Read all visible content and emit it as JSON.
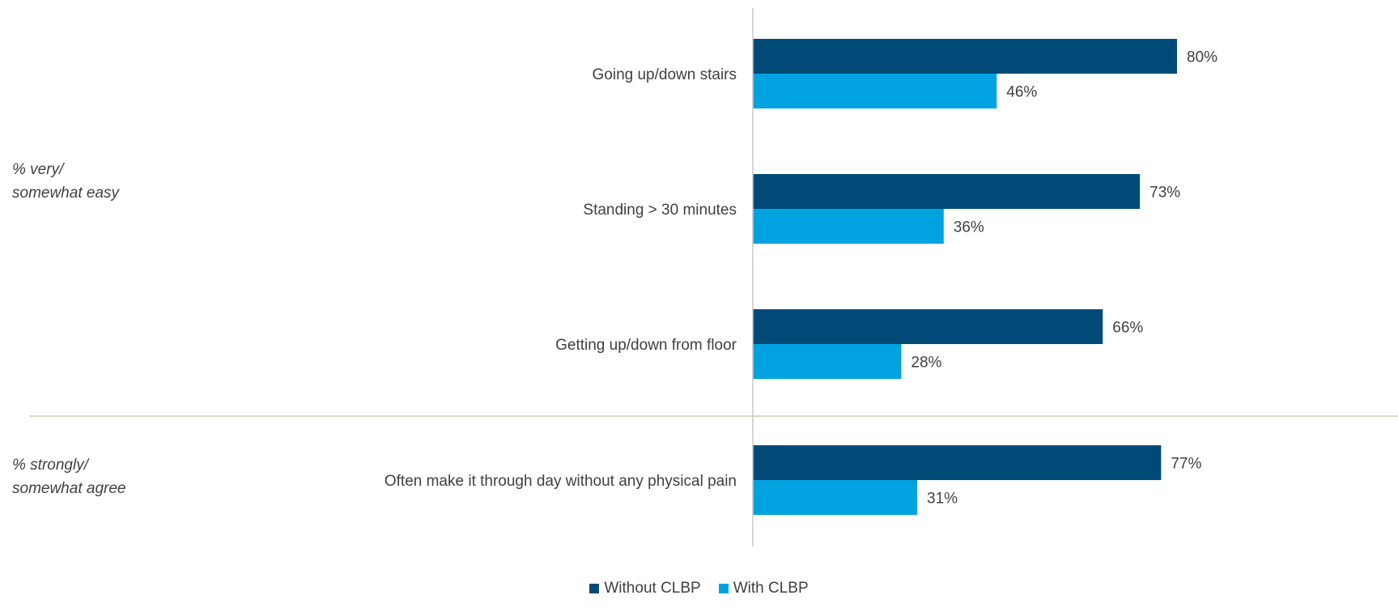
{
  "chart_data": {
    "type": "bar",
    "orientation": "horizontal",
    "xlim": [
      0,
      100
    ],
    "grid": false,
    "legend_position": "bottom-center",
    "value_suffix": "%",
    "groups": [
      {
        "label": "% very/\nsomewhat easy",
        "label_lines": [
          "% very/",
          "somewhat easy"
        ],
        "category_indices": [
          0,
          1,
          2
        ]
      },
      {
        "label": "% strongly/\nsomewhat agree",
        "label_lines": [
          "% strongly/",
          "somewhat agree"
        ],
        "category_indices": [
          3
        ]
      }
    ],
    "categories": [
      "Going up/down stairs",
      "Standing > 30 minutes",
      "Getting up/down from floor",
      "Often make it through day without any physical pain"
    ],
    "series": [
      {
        "name": "Without CLBP",
        "color": "#004a78",
        "values": [
          80,
          73,
          66,
          77
        ]
      },
      {
        "name": "With CLBP",
        "color": "#00a3e0",
        "values": [
          46,
          36,
          28,
          31
        ]
      }
    ],
    "axis_line_color": "#c8c8c8",
    "separator_color": "#d9d9cc"
  }
}
